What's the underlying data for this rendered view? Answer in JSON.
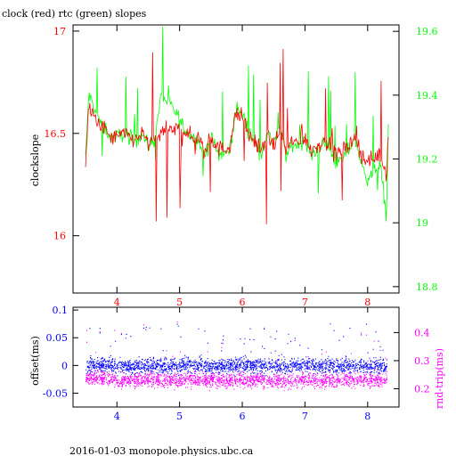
{
  "title": "clock (red) rtc (green) slopes",
  "footer": "2016-01-03  monopole.physics.ubc.ca",
  "colors": {
    "clock": "#ff0000",
    "rtc": "#00ff00",
    "offset": "#0000ff",
    "rndtrip": "#ff00ff",
    "axis_left_top": "#ff0000",
    "axis_right_top": "#00ff00",
    "axis_left_bottom": "#0000ff",
    "axis_right_bottom": "#ff00ff",
    "frame": "#000000"
  },
  "chart_data": [
    {
      "type": "line",
      "title": "clock (red) rtc (green) slopes",
      "ylabel": "clockslope",
      "xlim": [
        3.3,
        8.5
      ],
      "ylim": [
        15.72,
        17.03
      ],
      "y2lim": [
        18.78,
        19.62
      ],
      "xticks": [
        "4",
        "5",
        "6",
        "7",
        "8"
      ],
      "yticks": [
        "16",
        "16.5",
        "17"
      ],
      "y2ticks": [
        "18.8",
        "19",
        "19.2",
        "19.4",
        "19.6"
      ],
      "series": [
        {
          "name": "clock",
          "axis": "left",
          "x": [
            3.5,
            3.55,
            3.6,
            3.7,
            3.8,
            3.9,
            4.0,
            4.1,
            4.2,
            4.3,
            4.4,
            4.5,
            4.6,
            4.7,
            4.8,
            4.9,
            5.0,
            5.1,
            5.2,
            5.3,
            5.4,
            5.5,
            5.6,
            5.7,
            5.8,
            5.9,
            6.0,
            6.1,
            6.2,
            6.3,
            6.4,
            6.5,
            6.6,
            6.7,
            6.8,
            6.9,
            7.0,
            7.1,
            7.2,
            7.3,
            7.4,
            7.5,
            7.6,
            7.7,
            7.8,
            7.9,
            8.0,
            8.1,
            8.2,
            8.25,
            8.3,
            8.33
          ],
          "values": [
            16.35,
            16.62,
            16.6,
            16.55,
            16.52,
            16.48,
            16.48,
            16.5,
            16.48,
            16.47,
            16.5,
            16.45,
            16.47,
            16.5,
            16.52,
            16.5,
            16.55,
            16.5,
            16.48,
            16.47,
            16.4,
            16.48,
            16.43,
            16.42,
            16.44,
            16.6,
            16.58,
            16.5,
            16.46,
            16.42,
            16.48,
            16.45,
            16.5,
            16.42,
            16.46,
            16.45,
            16.48,
            16.42,
            16.44,
            16.46,
            16.45,
            16.4,
            16.42,
            16.44,
            16.48,
            16.4,
            16.36,
            16.38,
            16.4,
            16.35,
            16.3,
            16.52
          ]
        },
        {
          "name": "rtc",
          "axis": "right",
          "x": [
            3.5,
            3.55,
            3.6,
            3.7,
            3.8,
            3.9,
            4.0,
            4.1,
            4.2,
            4.3,
            4.4,
            4.5,
            4.6,
            4.7,
            4.8,
            4.9,
            5.0,
            5.1,
            5.2,
            5.3,
            5.4,
            5.5,
            5.6,
            5.7,
            5.8,
            5.9,
            6.0,
            6.1,
            6.2,
            6.3,
            6.4,
            6.5,
            6.6,
            6.7,
            6.8,
            6.9,
            7.0,
            7.1,
            7.2,
            7.3,
            7.4,
            7.5,
            7.6,
            7.7,
            7.8,
            7.9,
            8.0,
            8.1,
            8.2,
            8.25,
            8.3,
            8.33
          ],
          "values": [
            19.2,
            19.4,
            19.38,
            19.33,
            19.3,
            19.27,
            19.27,
            19.28,
            19.27,
            19.26,
            19.28,
            19.24,
            19.26,
            19.4,
            19.38,
            19.36,
            19.32,
            19.29,
            19.27,
            19.26,
            19.2,
            19.27,
            19.22,
            19.21,
            19.23,
            19.36,
            19.34,
            19.29,
            19.25,
            19.22,
            19.28,
            19.25,
            19.3,
            19.21,
            19.25,
            19.24,
            19.27,
            19.21,
            19.23,
            19.25,
            19.24,
            19.18,
            19.2,
            19.23,
            19.27,
            19.18,
            19.14,
            19.16,
            19.18,
            19.1,
            19.02,
            19.3
          ]
        }
      ]
    },
    {
      "type": "scatter",
      "ylabel": "offset(ms)",
      "y2label": "rnd-trip(ms)",
      "xlim": [
        3.3,
        8.5
      ],
      "ylim": [
        -0.075,
        0.105
      ],
      "y2lim": [
        0.135,
        0.49
      ],
      "xticks": [
        "4",
        "5",
        "6",
        "7",
        "8"
      ],
      "yticks": [
        "-0.05",
        "0",
        "0.05",
        "0.1"
      ],
      "y2ticks": [
        "0.2",
        "0.3",
        "0.4"
      ],
      "series": [
        {
          "name": "offset",
          "axis": "left",
          "x": [
            3.5,
            3.75,
            4.0,
            4.25,
            4.5,
            4.75,
            5.0,
            5.25,
            5.5,
            5.75,
            6.0,
            6.25,
            6.5,
            6.75,
            7.0,
            7.25,
            7.5,
            7.75,
            8.0,
            8.3
          ],
          "values": [
            0.0,
            0.002,
            0.0,
            -0.002,
            0.001,
            0.0,
            0.0,
            0.001,
            -0.001,
            0.0,
            0.0,
            0.001,
            0.0,
            -0.001,
            0.0,
            0.001,
            0.0,
            0.0,
            -0.001,
            0.0
          ]
        },
        {
          "name": "rnd-trip",
          "axis": "right",
          "x": [
            3.5,
            3.75,
            4.0,
            4.25,
            4.5,
            4.75,
            5.0,
            5.25,
            5.5,
            5.75,
            6.0,
            6.25,
            6.5,
            6.75,
            7.0,
            7.25,
            7.5,
            7.75,
            8.0,
            8.3
          ],
          "values": [
            0.24,
            0.24,
            0.23,
            0.23,
            0.235,
            0.23,
            0.23,
            0.235,
            0.235,
            0.23,
            0.23,
            0.235,
            0.23,
            0.23,
            0.235,
            0.23,
            0.23,
            0.235,
            0.23,
            0.235
          ]
        }
      ]
    }
  ]
}
